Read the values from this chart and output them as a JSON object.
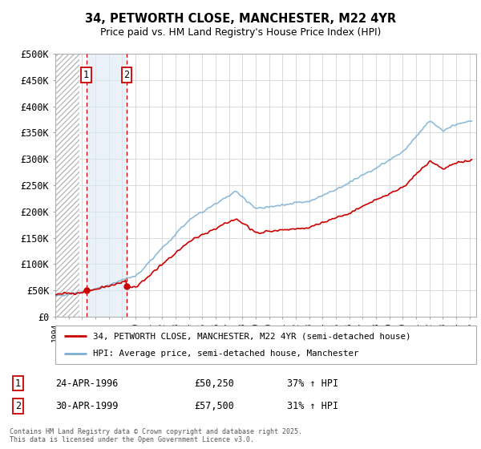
{
  "title1": "34, PETWORTH CLOSE, MANCHESTER, M22 4YR",
  "title2": "Price paid vs. HM Land Registry's House Price Index (HPI)",
  "ylabel_values": [
    "£0",
    "£50K",
    "£100K",
    "£150K",
    "£200K",
    "£250K",
    "£300K",
    "£350K",
    "£400K",
    "£450K",
    "£500K"
  ],
  "ylim": [
    0,
    500000
  ],
  "xlim_start": 1994.0,
  "xlim_end": 2025.5,
  "sale1_date": 1996.31,
  "sale2_date": 1999.33,
  "sale1_price": 50250,
  "sale2_price": 57500,
  "legend_line1": "34, PETWORTH CLOSE, MANCHESTER, M22 4YR (semi-detached house)",
  "legend_line2": "HPI: Average price, semi-detached house, Manchester",
  "table_row1_num": "1",
  "table_row1_date": "24-APR-1996",
  "table_row1_price": "£50,250",
  "table_row1_hpi": "37% ↑ HPI",
  "table_row2_num": "2",
  "table_row2_date": "30-APR-1999",
  "table_row2_price": "£57,500",
  "table_row2_hpi": "31% ↑ HPI",
  "footer": "Contains HM Land Registry data © Crown copyright and database right 2025.\nThis data is licensed under the Open Government Licence v3.0.",
  "line_color_red": "#cc0000",
  "line_color_blue": "#7ab0d4",
  "sale_highlight_color": "#dce9f5",
  "grid_color": "#cccccc",
  "hatch_color": "#bbbbbb",
  "background_color": "#ffffff",
  "chart_bg": "#ffffff"
}
